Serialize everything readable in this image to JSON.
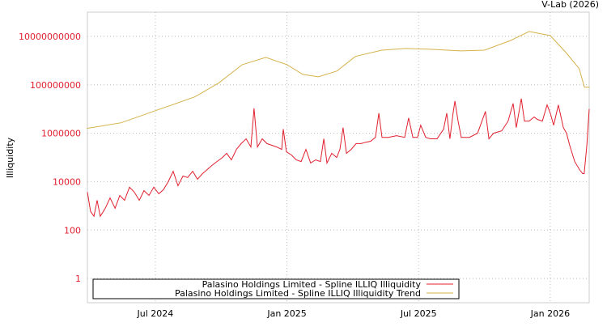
{
  "chart_data": {
    "type": "line",
    "credit": "V-Lab (2026)",
    "title": "",
    "xlabel": "",
    "ylabel": "Illiquidity",
    "yscale": "log",
    "ylim_log10": [
      -1,
      11
    ],
    "xlim": [
      2024.242,
      2026.148
    ],
    "grid": true,
    "legend_position": "bottom-left",
    "y_ticks": [
      {
        "log10": 0,
        "label": "1"
      },
      {
        "log10": 2,
        "label": "100"
      },
      {
        "log10": 4,
        "label": "10000"
      },
      {
        "log10": 6,
        "label": "1000000"
      },
      {
        "log10": 8,
        "label": "100000000"
      },
      {
        "log10": 10,
        "label": "10000000000"
      }
    ],
    "x_ticks": [
      {
        "x": 2024.5,
        "label": "Jul 2024"
      },
      {
        "x": 2025.0,
        "label": "Jan 2025"
      },
      {
        "x": 2025.5,
        "label": "Jul 2025"
      },
      {
        "x": 2026.0,
        "label": "Jan 2026"
      }
    ],
    "series": [
      {
        "name": "Palasino Holdings Limited - Spline ILLIQ Illiquidity",
        "color": "#e0202e",
        "x": [
          2024.242,
          2024.254,
          2024.267,
          2024.279,
          2024.291,
          2024.31,
          2024.328,
          2024.347,
          2024.365,
          2024.383,
          2024.402,
          2024.42,
          2024.439,
          2024.457,
          2024.476,
          2024.494,
          2024.513,
          2024.531,
          2024.549,
          2024.568,
          2024.586,
          2024.605,
          2024.623,
          2024.642,
          2024.66,
          2024.679,
          2024.697,
          2024.715,
          2024.734,
          2024.752,
          2024.771,
          2024.789,
          2024.808,
          2024.826,
          2024.845,
          2024.863,
          2024.875,
          2024.888,
          2024.906,
          2024.924,
          2024.943,
          2024.961,
          2024.98,
          2024.986,
          2024.998,
          2025.017,
          2025.035,
          2025.054,
          2025.072,
          2025.09,
          2025.109,
          2025.127,
          2025.14,
          2025.152,
          2025.17,
          2025.189,
          2025.201,
          2025.213,
          2025.226,
          2025.244,
          2025.263,
          2025.281,
          2025.3,
          2025.318,
          2025.336,
          2025.349,
          2025.361,
          2025.385,
          2025.416,
          2025.447,
          2025.462,
          2025.478,
          2025.496,
          2025.508,
          2025.527,
          2025.545,
          2025.57,
          2025.595,
          2025.607,
          2025.619,
          2025.631,
          2025.638,
          2025.65,
          2025.662,
          2025.693,
          2025.724,
          2025.754,
          2025.767,
          2025.785,
          2025.816,
          2025.84,
          2025.859,
          2025.871,
          2025.89,
          2025.902,
          2025.92,
          2025.939,
          2025.951,
          2025.97,
          2025.988,
          2026.0,
          2026.013,
          2026.031,
          2026.05,
          2026.062,
          2026.074,
          2026.093,
          2026.111,
          2026.123,
          2026.129,
          2026.139,
          2026.148
        ],
        "values_log10": [
          3.57,
          2.77,
          2.57,
          3.23,
          2.57,
          2.9,
          3.33,
          2.9,
          3.43,
          3.23,
          3.77,
          3.57,
          3.23,
          3.63,
          3.43,
          3.77,
          3.5,
          3.67,
          4,
          4.43,
          3.83,
          4.23,
          4.17,
          4.43,
          4.1,
          4.33,
          4.5,
          4.67,
          4.83,
          4.97,
          5.17,
          4.9,
          5.33,
          5.57,
          5.77,
          5.43,
          7.03,
          5.43,
          5.77,
          5.57,
          5.5,
          5.43,
          5.33,
          6.17,
          5.23,
          5.1,
          4.9,
          4.83,
          5.33,
          4.77,
          4.9,
          4.83,
          5.77,
          4.77,
          5.17,
          5,
          5.33,
          6.23,
          5.17,
          5.33,
          5.57,
          5.57,
          5.63,
          5.67,
          5.83,
          6.83,
          5.83,
          5.83,
          5.9,
          5.83,
          6.63,
          5.83,
          5.83,
          6.33,
          5.83,
          5.77,
          5.77,
          6.17,
          6.83,
          5.77,
          6.83,
          7.33,
          6.5,
          5.83,
          5.83,
          6,
          6.9,
          5.77,
          6,
          6.1,
          6.5,
          7.23,
          6.23,
          7.43,
          6.5,
          6.5,
          6.67,
          6.57,
          6.5,
          7.17,
          6.83,
          6.33,
          7.17,
          6.23,
          6,
          5.5,
          4.83,
          4.5,
          4.33,
          4.33,
          5.5,
          7
        ]
      },
      {
        "name": "Palasino Holdings Limited - Spline ILLIQ Illiquidity Trend",
        "color": "#d4b24c",
        "x": [
          2024.24,
          2024.37,
          2024.5,
          2024.65,
          2024.74,
          2024.83,
          2024.92,
          2025.0,
          2025.06,
          2025.12,
          2025.19,
          2025.26,
          2025.36,
          2025.45,
          2025.54,
          2025.66,
          2025.75,
          2025.85,
          2025.92,
          2026.0,
          2026.06,
          2026.11,
          2026.13,
          2026.15
        ],
        "values_log10": [
          6.2,
          6.43,
          6.93,
          7.5,
          8.07,
          8.83,
          9.13,
          8.83,
          8.43,
          8.33,
          8.57,
          9.17,
          9.43,
          9.5,
          9.47,
          9.4,
          9.43,
          9.83,
          10.2,
          10.03,
          9.33,
          8.67,
          7.9,
          7.9
        ]
      }
    ]
  }
}
